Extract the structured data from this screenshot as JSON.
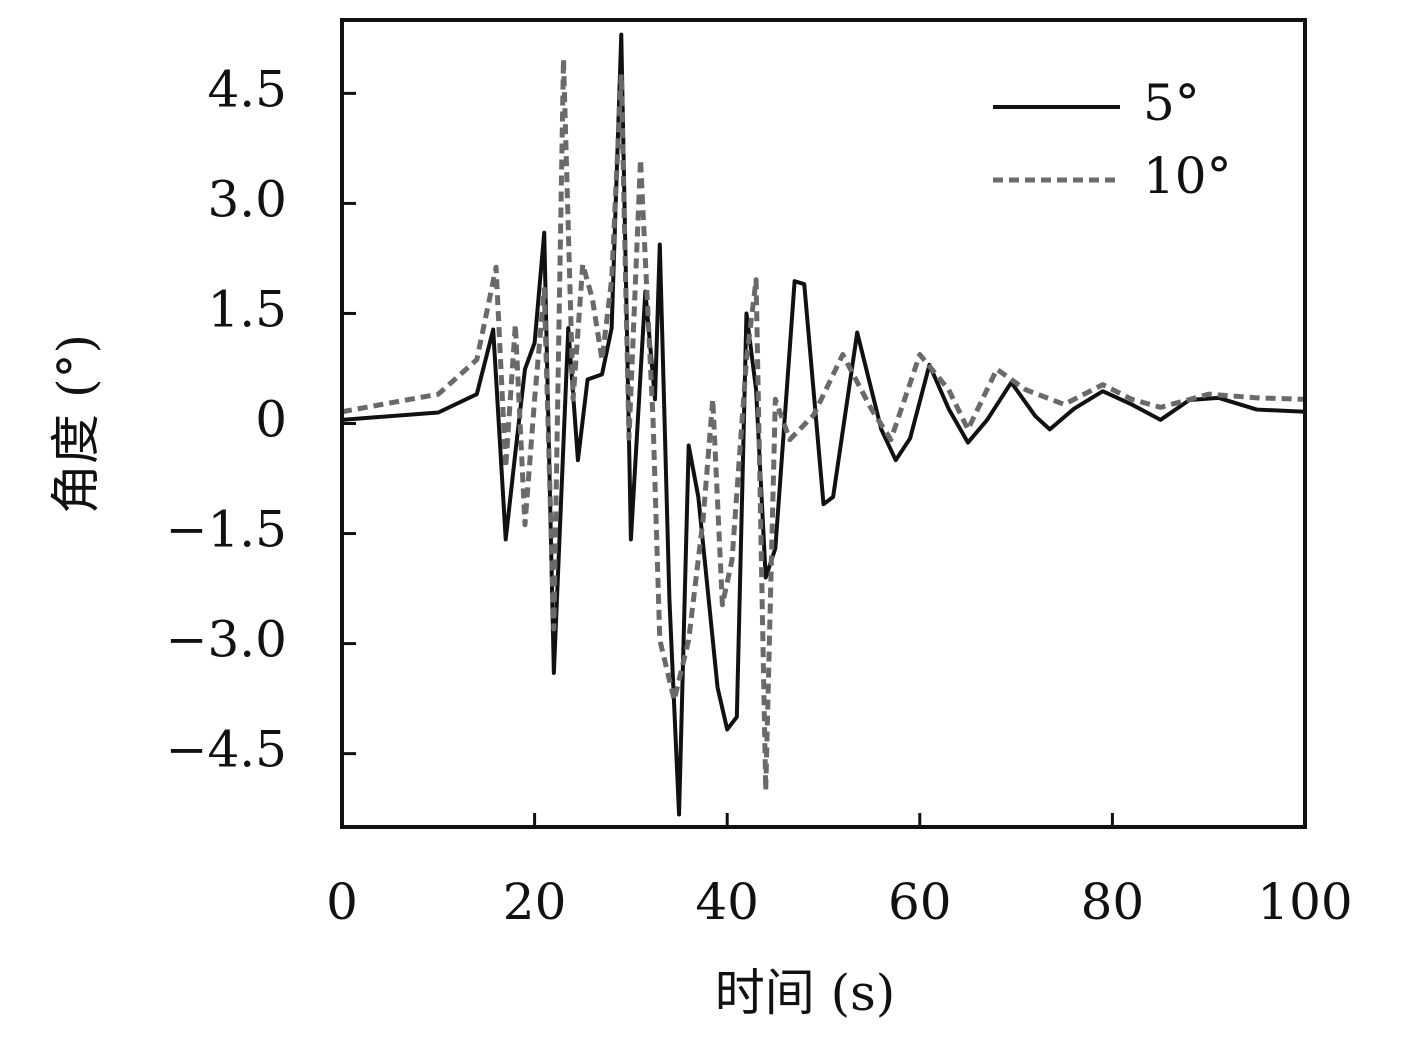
{
  "chart_data": {
    "type": "line",
    "xlabel": "时间 (s)",
    "ylabel": "角度 (°)",
    "xlim": [
      0,
      100
    ],
    "ylim": [
      -5.5,
      5.5
    ],
    "xticks": [
      0,
      20,
      40,
      60,
      80,
      100
    ],
    "yticks": [
      {
        "value": -4.5,
        "label": "−4.5"
      },
      {
        "value": -3,
        "label": "−3.0"
      },
      {
        "value": -1.5,
        "label": "−1.5"
      },
      0,
      1.5,
      {
        "value": 3,
        "label": "3.0"
      },
      4.5
    ],
    "legend": "upper right",
    "series": [
      {
        "name": "5°",
        "color": "#111111",
        "dash": false,
        "x": [
          0,
          10,
          14,
          15.7,
          17,
          18,
          19,
          20,
          21,
          22,
          23.5,
          24.5,
          25.5,
          27,
          28,
          29,
          30,
          31.5,
          32.5,
          33,
          34,
          35,
          36,
          37,
          38,
          39,
          40,
          41,
          42,
          43,
          44,
          45,
          47,
          48,
          50,
          51,
          53.5,
          56,
          57.5,
          59,
          61,
          63,
          65,
          67,
          69.5,
          72,
          73.5,
          76,
          79,
          82,
          85,
          88,
          91,
          95,
          100
        ],
        "values": [
          0.05,
          0.15,
          0.4,
          1.28,
          -1.58,
          -0.4,
          0.74,
          1.1,
          2.6,
          -3.4,
          1.3,
          -0.5,
          0.6,
          0.67,
          1.3,
          5.3,
          -1.58,
          1.8,
          0.33,
          2.44,
          -2.4,
          -5.33,
          -0.3,
          -1.0,
          -2.3,
          -3.6,
          -4.17,
          -4.0,
          1.5,
          0.46,
          -2.1,
          -1.7,
          1.94,
          1.9,
          -1.1,
          -1.0,
          1.24,
          -0.08,
          -0.5,
          -0.2,
          0.8,
          0.2,
          -0.26,
          0.05,
          0.56,
          0.1,
          -0.08,
          0.2,
          0.44,
          0.26,
          0.05,
          0.32,
          0.35,
          0.19,
          0.16
        ]
      },
      {
        "name": "10°",
        "color": "#6a6a6a",
        "dash": true,
        "x": [
          0,
          10,
          14,
          16,
          17,
          18,
          19,
          20,
          21,
          22,
          23,
          24,
          25,
          26,
          27,
          28,
          29,
          29.8,
          31,
          32.3,
          33,
          34.5,
          36,
          37.5,
          38.5,
          39.5,
          40.5,
          42,
          43,
          44,
          45,
          46.5,
          49,
          52,
          55,
          57,
          60,
          63,
          65,
          68,
          71,
          75,
          79,
          82,
          85,
          90,
          95,
          100
        ],
        "values": [
          0.16,
          0.4,
          0.87,
          2.13,
          -0.6,
          1.35,
          -1.38,
          0.33,
          1.83,
          -2.8,
          4.97,
          0.33,
          2.17,
          1.7,
          0.87,
          1.96,
          4.76,
          -0.2,
          3.6,
          0.05,
          -2.95,
          -3.77,
          -2.95,
          -1.3,
          0.33,
          -2.47,
          -1.86,
          0.87,
          1.96,
          -5.0,
          0.33,
          -0.22,
          0.12,
          0.94,
          0.19,
          -0.22,
          0.94,
          0.46,
          -0.08,
          0.74,
          0.46,
          0.26,
          0.53,
          0.33,
          0.22,
          0.4,
          0.35,
          0.33
        ]
      }
    ]
  }
}
